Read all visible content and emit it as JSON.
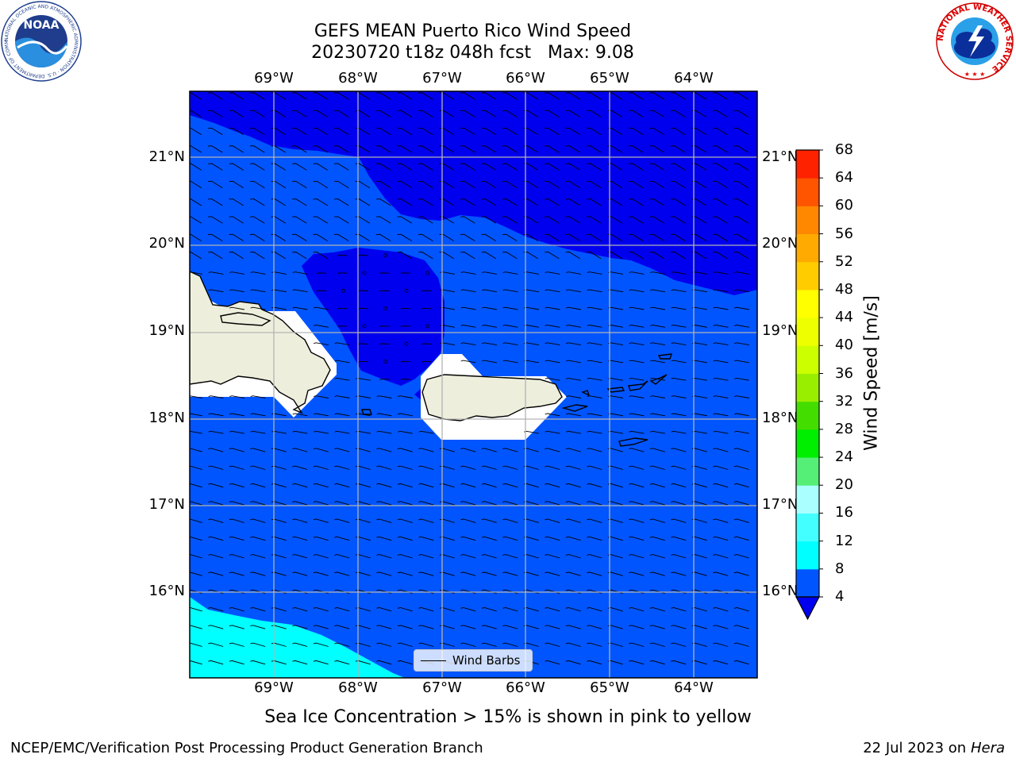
{
  "title_line1": "GEFS MEAN Puerto Rico Wind Speed",
  "title_line2": "20230720 t18z 048h fcst   Max: 9.08",
  "logos": {
    "left": {
      "name": "noaa-logo",
      "text": "NOAA",
      "ring_text": "NATIONAL OCEANIC AND ATMOSPHERIC ADMINISTRATION · U.S. DEPARTMENT OF COMMERCE"
    },
    "right": {
      "name": "nws-logo",
      "ring_text": "NATIONAL WEATHER SERVICE"
    }
  },
  "lon_labels": [
    "69°W",
    "68°W",
    "67°W",
    "66°W",
    "65°W",
    "64°W"
  ],
  "lat_labels": [
    "21°N",
    "20°N",
    "19°N",
    "18°N",
    "17°N",
    "16°N"
  ],
  "colorbar": {
    "label": "Wind Speed [m/s]",
    "ticks": [
      "4",
      "8",
      "12",
      "16",
      "20",
      "24",
      "28",
      "32",
      "36",
      "40",
      "44",
      "48",
      "52",
      "56",
      "60",
      "64",
      "68"
    ],
    "colors": [
      "#0055ff",
      "#00ffff",
      "#44ffff",
      "#aaffff",
      "#55ee77",
      "#00ee00",
      "#44dd00",
      "#99ee00",
      "#ccff00",
      "#eeff00",
      "#ffff00",
      "#ffcc00",
      "#ffaa00",
      "#ff8800",
      "#ff5500",
      "#ff2200",
      "#ff0000"
    ],
    "under_color": "#0000ee"
  },
  "legend": {
    "label": "Wind Barbs"
  },
  "subtitle": "Sea Ice Concentration > 15% is shown in pink to yellow",
  "footer_left": "NCEP/EMC/Verification Post Processing Product Generation Branch",
  "footer_right_prefix": "22 Jul 2023 on ",
  "footer_right_host": "Hera",
  "fill_colors": {
    "deep": "#0000ee",
    "mid": "#0055ff",
    "cyan": "#00ffff",
    "land": "#eeeedd",
    "mask": "#ffffff"
  }
}
